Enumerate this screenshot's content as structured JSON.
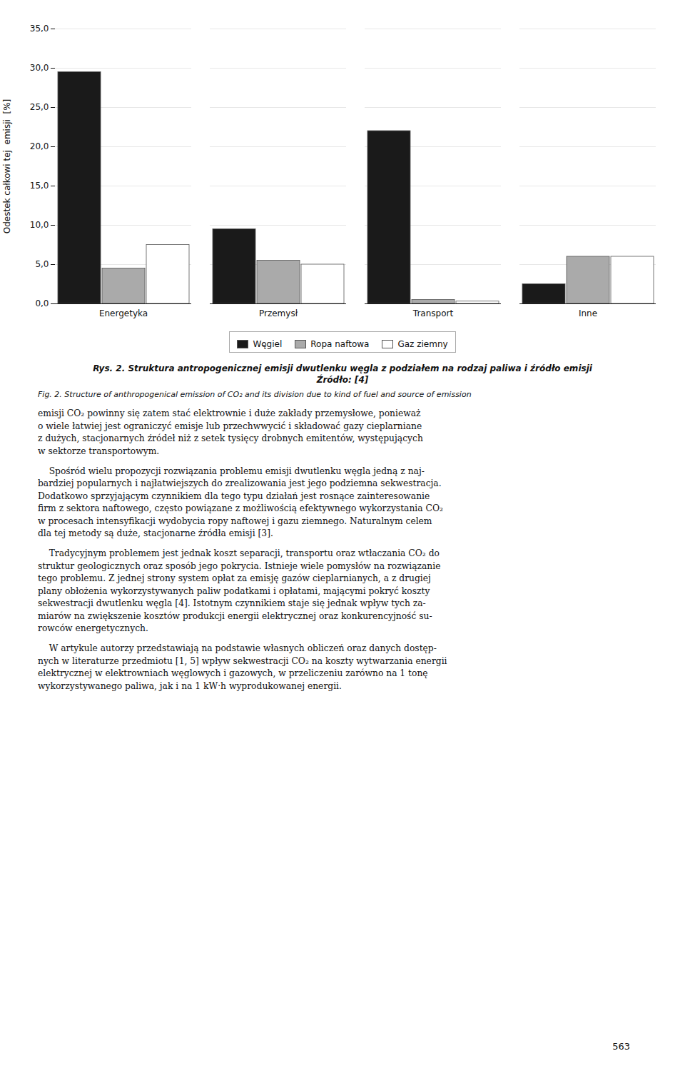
{
  "chart_data": {
    "type": "bar",
    "title": "Rys. 2. Struktura antropogenicznej emisji dwutlenku węgla z podziałem na rodzaj paliwa i źródło emisji",
    "subtitle": "Źródło: [4]",
    "ylabel": "Odestek całkowi tej  emisji  [%]",
    "categories": [
      "Energetyka",
      "Przemysł",
      "Transport",
      "Inne"
    ],
    "series": [
      {
        "name": "Węgiel",
        "color": "#1a1a1a",
        "values": [
          29.5,
          9.5,
          22.0,
          2.5
        ]
      },
      {
        "name": "Ropa naftowa",
        "color": "#aaaaaa",
        "values": [
          4.5,
          5.5,
          0.5,
          6.0
        ]
      },
      {
        "name": "Gaz ziemny",
        "color": "#ffffff",
        "values": [
          7.5,
          5.0,
          0.3,
          6.0
        ]
      }
    ],
    "ylim": [
      0,
      35
    ],
    "yticks": [
      {
        "value": 0,
        "label": "0,0"
      },
      {
        "value": 5,
        "label": "5,0"
      },
      {
        "value": 10,
        "label": "10,0"
      },
      {
        "value": 15,
        "label": "15,0"
      },
      {
        "value": 20,
        "label": "20,0"
      },
      {
        "value": 25,
        "label": "25,0"
      },
      {
        "value": 30,
        "label": "30,0"
      },
      {
        "value": 35,
        "label": "35,0"
      }
    ],
    "grid": true,
    "legend": "bottom",
    "annotations": [
      "Fig. 2. Structure of anthropogenical emission of CO₂ and its division due to kind of fuel and source of emission",
      "emisji CO₂ powinny się zatem stać elektrownie i duże zakłady przemysłowe, ponieważ",
      "o wiele łatwiej jest ograniczyć emisje lub przechwwycić i składować gazy cieplarniane",
      "z dużych, stacjonarnych źródeł niż z setek tysięcy drobnych emitentów, występujących",
      "w sektorze transportowym.",
      "    Spośród wielu propozycji rozwiązania problemu emisji dwutlenku węgla jedną z naj-",
      "bardziej popularnych i najłatwiejszych do zrealizowania jest jego podziemna sekwestracja.",
      "Dodatkowo sprzyjającym czynnikiem dla tego typu działań jest rosnące zainteresowanie",
      "firm z sektora naftowego, często powiązane z możliwością efektywnego wykorzystania CO₂",
      "w procesach intensyfikacji wydobycia ropy naftowej i gazu ziemnego. Naturalnym celem",
      "dla tej metody są duże, stacjonarne źródła emisji [3].",
      "    Tradycyjnym problemem jest jednak koszt separacji, transportu oraz wtłaczania CO₂ do",
      "struktur geologicznych oraz sposób jego pokrycia. Istnieje wiele pomysłów na rozwiązanie",
      "tego problemu. Z jednej strony system opłat za emisję gazów cieplarnianych, a z drugiej",
      "plany obłożenia wykorzystywanych paliw podatkami i opłatami, mającymi pokryć koszty",
      "sekwestracji dwutlenku węgla [4]. Istotnym czynnikiem staje się jednak wpływ tych za-",
      "miarów na zwiększenie kosztów produkcji energii elektrycznej oraz konkurencyjność su-",
      "rowców energetycznych.",
      "    W artykule autorzy przedstawiają na podstawie własnych obliczeń oraz danych dostęp-",
      "nych w literaturze przedmiotu [1, 5] wpływ sekwestracji CO₂ na koszty wytwarzania energii",
      "elektrycznej w elektrowniach węglowych i gazowych, w przeliczeniu zarówno na 1 tonę",
      "wykorzystywanego paliwa, jak i na 1 kW·h wyprodukowanej energii.",
      "563"
    ]
  }
}
